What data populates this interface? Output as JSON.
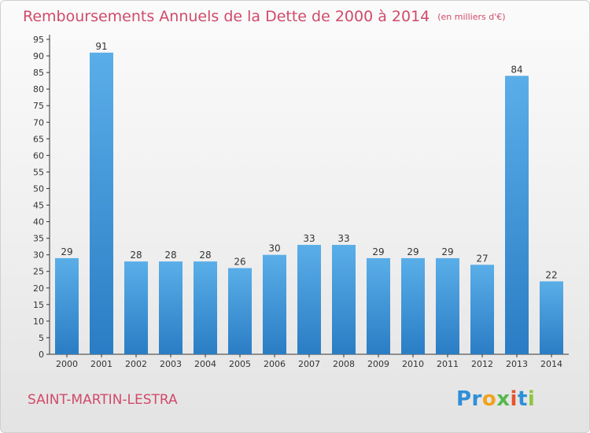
{
  "title": "Remboursements Annuels de la Dette de 2000 à 2014",
  "subtitle": "(en milliers d'€)",
  "commune": "SAINT-MARTIN-LESTRA",
  "logo": {
    "p1": "Pr",
    "p2": "o",
    "p3": "x",
    "p4": "i",
    "p5": "t",
    "p6": "i"
  },
  "colors": {
    "title": "#d04a6a",
    "bar_top": "#5aaee8",
    "bar_bottom": "#2a7dc4",
    "axis": "#333333"
  },
  "chart_data": {
    "type": "bar",
    "title": "Remboursements Annuels de la Dette de 2000 à 2014",
    "subtitle": "(en milliers d'€)",
    "xlabel": "",
    "ylabel": "",
    "categories": [
      "2000",
      "2001",
      "2002",
      "2003",
      "2004",
      "2005",
      "2006",
      "2007",
      "2008",
      "2009",
      "2010",
      "2011",
      "2012",
      "2013",
      "2014"
    ],
    "values": [
      29,
      91,
      28,
      28,
      28,
      26,
      30,
      33,
      33,
      29,
      29,
      29,
      27,
      84,
      22
    ],
    "ylim": [
      0,
      95
    ],
    "yticks": [
      0,
      5,
      10,
      15,
      20,
      25,
      30,
      35,
      40,
      45,
      50,
      55,
      60,
      65,
      70,
      75,
      80,
      85,
      90,
      95
    ],
    "grid": false,
    "data_labels": true
  }
}
